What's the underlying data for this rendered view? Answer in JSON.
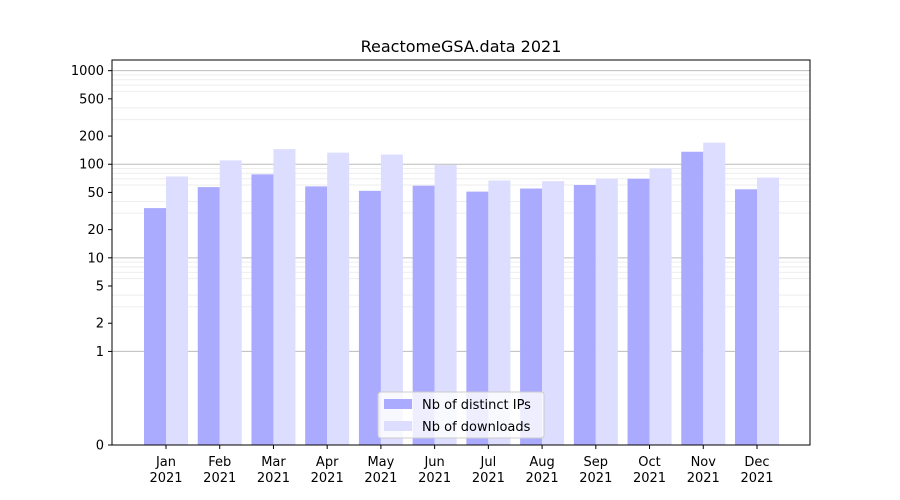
{
  "chart_data": {
    "type": "bar",
    "title": "ReactomeGSA.data 2021",
    "xlabel": "",
    "ylabel": "",
    "yscale": "symlog",
    "ylim": [
      0,
      1300
    ],
    "yticks": [
      0,
      1,
      2,
      5,
      10,
      20,
      50,
      100,
      200,
      500,
      1000
    ],
    "categories": [
      [
        "Jan",
        "2021"
      ],
      [
        "Feb",
        "2021"
      ],
      [
        "Mar",
        "2021"
      ],
      [
        "Apr",
        "2021"
      ],
      [
        "May",
        "2021"
      ],
      [
        "Jun",
        "2021"
      ],
      [
        "Jul",
        "2021"
      ],
      [
        "Aug",
        "2021"
      ],
      [
        "Sep",
        "2021"
      ],
      [
        "Oct",
        "2021"
      ],
      [
        "Nov",
        "2021"
      ],
      [
        "Dec",
        "2021"
      ]
    ],
    "series": [
      {
        "name": "Nb of distinct IPs",
        "color": "#aaaaff",
        "values": [
          34,
          57,
          78,
          58,
          52,
          59,
          51,
          55,
          60,
          70,
          136,
          54
        ]
      },
      {
        "name": "Nb of downloads",
        "color": "#ddddff",
        "values": [
          74,
          110,
          145,
          133,
          127,
          98,
          67,
          66,
          70,
          90,
          170,
          72
        ]
      }
    ],
    "legend": "bottom-center",
    "grid": true
  }
}
